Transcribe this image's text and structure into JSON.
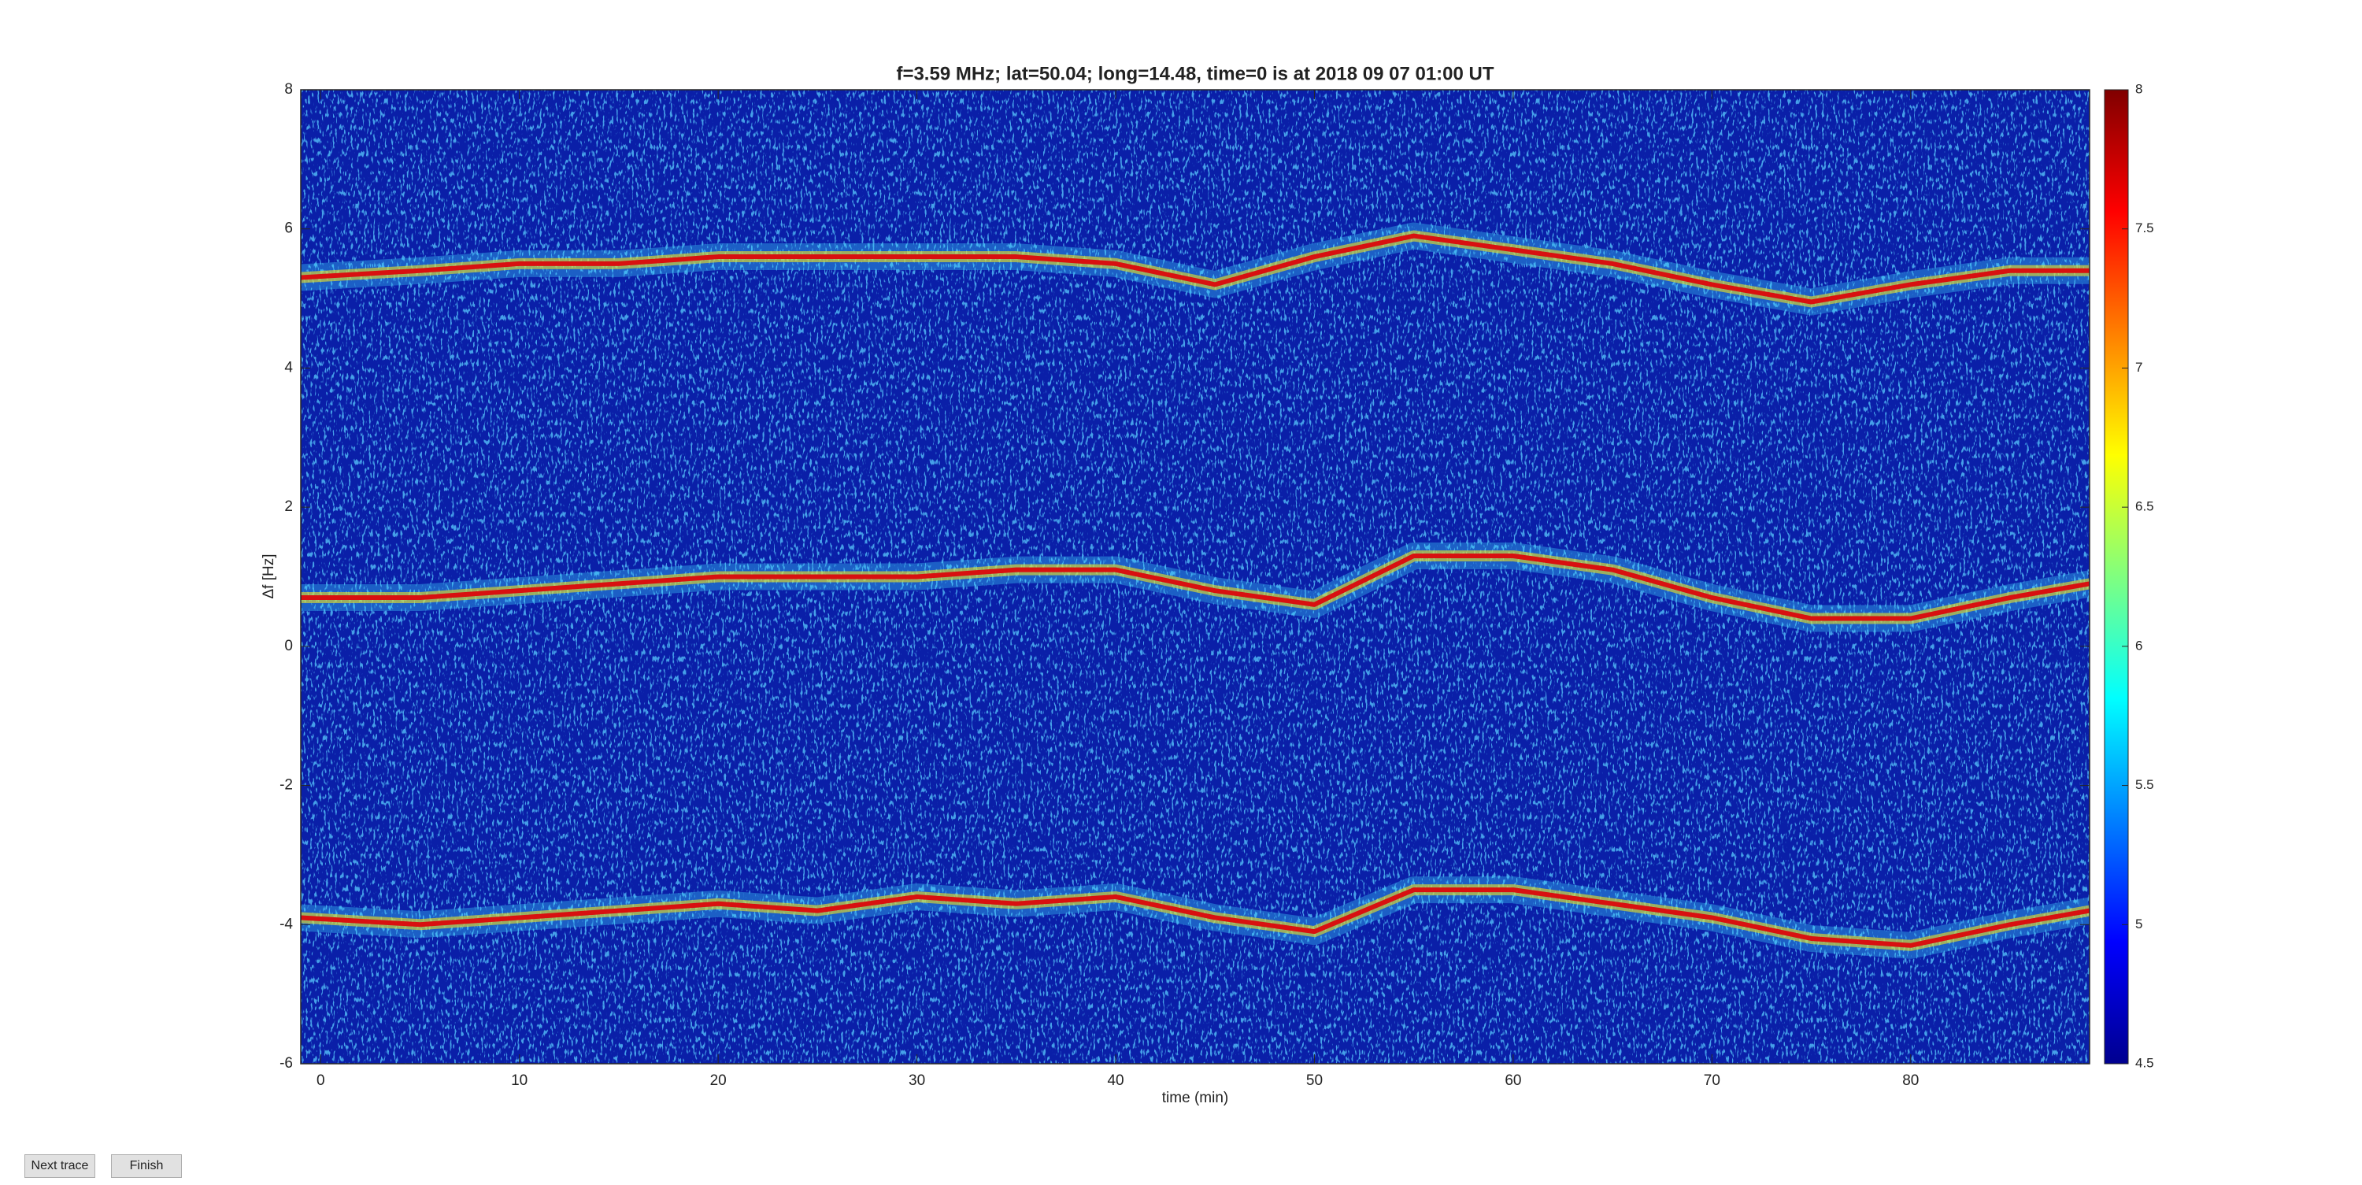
{
  "chart_data": {
    "type": "spectrogram",
    "title": "f=3.59 MHz;  lat=50.04; long=14.48, time=0 is at 2018 09 07 01:00 UT",
    "xlabel": "time (min)",
    "ylabel": "Δf [Hz]",
    "x": [
      -1,
      5,
      10,
      15,
      20,
      25,
      30,
      35,
      40,
      45,
      50,
      55,
      60,
      65,
      70,
      75,
      80,
      85,
      89
    ],
    "series": [
      {
        "color": "#d81010",
        "values": [
          5.3,
          5.4,
          5.5,
          5.5,
          5.6,
          5.6,
          5.6,
          5.6,
          5.5,
          5.2,
          5.6,
          5.9,
          5.7,
          5.5,
          5.2,
          4.95,
          5.2,
          5.4,
          5.4
        ]
      },
      {
        "color": "#d81010",
        "values": [
          0.7,
          0.7,
          0.8,
          0.9,
          1.0,
          1.0,
          1.0,
          1.1,
          1.1,
          0.8,
          0.6,
          1.3,
          1.3,
          1.1,
          0.7,
          0.4,
          0.4,
          0.7,
          0.9
        ]
      },
      {
        "color": "#d81010",
        "values": [
          -3.9,
          -4.0,
          -3.9,
          -3.8,
          -3.7,
          -3.8,
          -3.6,
          -3.7,
          -3.6,
          -3.9,
          -4.1,
          -3.5,
          -3.5,
          -3.7,
          -3.9,
          -4.2,
          -4.3,
          -4.0,
          -3.8
        ]
      }
    ],
    "xlim": [
      -1,
      89
    ],
    "xticks": [
      0,
      10,
      20,
      30,
      40,
      50,
      60,
      70,
      80
    ],
    "ylim": [
      -6,
      8
    ],
    "yticks": [
      -6,
      -4,
      -2,
      0,
      2,
      4,
      6,
      8
    ],
    "clim": [
      4.5,
      8
    ],
    "cticks": [
      4.5,
      5,
      5.5,
      6,
      6.5,
      7,
      7.5,
      8
    ],
    "colormap": "jet"
  },
  "buttons": [
    "Next trace",
    "Finish"
  ]
}
